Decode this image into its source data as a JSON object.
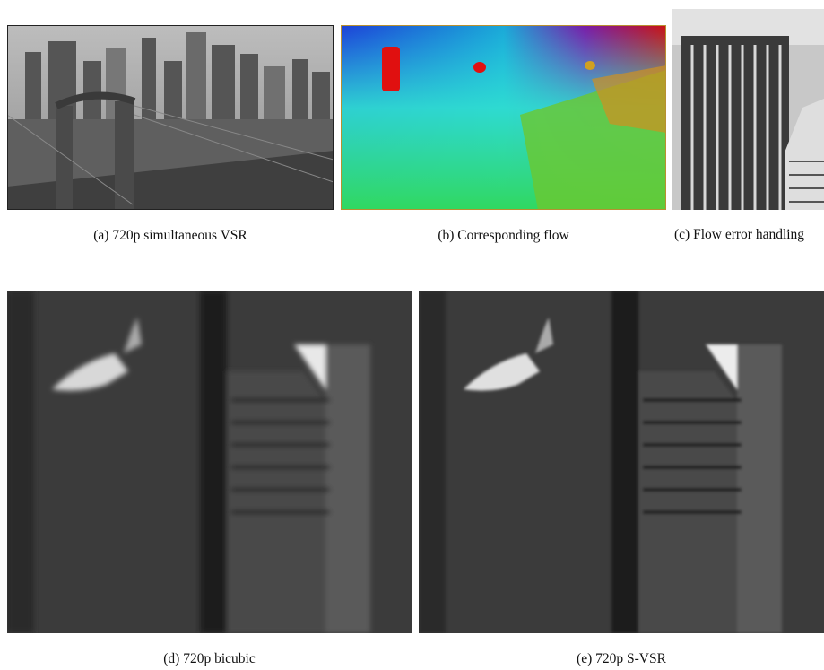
{
  "figures": [
    {
      "caption": "(a) 720p simultaneous VSR"
    },
    {
      "caption": "(b) Corresponding flow"
    },
    {
      "caption": "(c) Flow error handling"
    },
    {
      "caption": "(d) 720p bicubic"
    },
    {
      "caption": "(e) 720p S-VSR"
    }
  ]
}
